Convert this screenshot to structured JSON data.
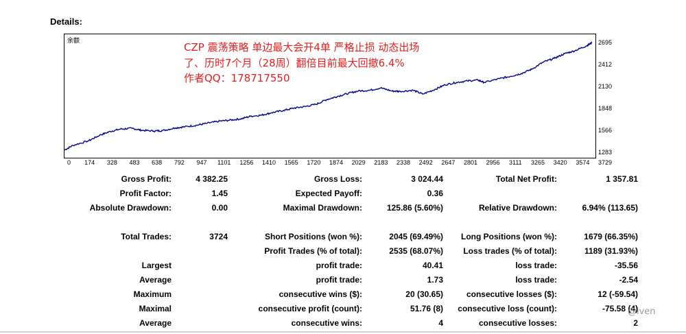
{
  "title": "Details:",
  "chart": {
    "balance_label": "余额",
    "watermark_lines": [
      "CZP 震荡策略 单边最大会开4单 严格止损  动态出场",
      "了、历时7个月（28周）翻倍目前最大回撤6.4%",
      "作者QQ：178717550"
    ],
    "line_color": "#00008b",
    "y_ticks": [
      "2695",
      "2412",
      "2130",
      "1848",
      "1566",
      "1283"
    ],
    "x_ticks": [
      "0",
      "174",
      "328",
      "483",
      "638",
      "792",
      "947",
      "1101",
      "1256",
      "1410",
      "1565",
      "1720",
      "1874",
      "2029",
      "2183",
      "2338",
      "2492",
      "2647",
      "2801",
      "2956",
      "3111",
      "3265",
      "3420",
      "3574",
      "3729"
    ]
  },
  "chart_data": {
    "type": "line",
    "ylim": [
      1283,
      2695
    ],
    "xlim": [
      0,
      3790
    ],
    "series": [
      {
        "x": [
          0,
          60,
          174,
          250,
          328,
          400,
          483,
          550,
          638,
          700,
          792,
          860,
          947,
          1020,
          1101,
          1180,
          1256,
          1330,
          1410,
          1480,
          1565,
          1640,
          1720,
          1800,
          1874,
          1950,
          2029,
          2100,
          2183,
          2260,
          2338,
          2400,
          2492,
          2560,
          2647,
          2720,
          2801,
          2880,
          2956,
          3000,
          3111,
          3190,
          3265,
          3340,
          3420,
          3500,
          3574,
          3650,
          3729,
          3770
        ],
        "values": [
          1320,
          1380,
          1440,
          1510,
          1560,
          1590,
          1600,
          1575,
          1565,
          1570,
          1605,
          1620,
          1640,
          1665,
          1690,
          1705,
          1720,
          1755,
          1770,
          1800,
          1830,
          1860,
          1880,
          1910,
          1970,
          2010,
          2050,
          2080,
          2090,
          2120,
          2080,
          2075,
          2090,
          2040,
          2100,
          2160,
          2190,
          2210,
          2220,
          2190,
          2240,
          2270,
          2305,
          2360,
          2450,
          2500,
          2560,
          2600,
          2660,
          2700
        ]
      }
    ]
  },
  "stats": [
    {
      "l1": "Gross Profit:",
      "v1": "4 382.25",
      "l2": "Gross Loss:",
      "v2": "3 024.44",
      "l3": "Total Net Profit:",
      "v3": "1 357.81"
    },
    {
      "l1": "Profit Factor:",
      "v1": "1.45",
      "l2": "Expected Payoff:",
      "v2": "0.36",
      "l3": "",
      "v3": ""
    },
    {
      "l1": "Absolute Drawdown:",
      "v1": "0.00",
      "l2": "Maximal Drawdown:",
      "v2": "125.86 (5.60%)",
      "l3": "Relative Drawdown:",
      "v3": "6.94% (113.65)"
    },
    {
      "l1": "Total Trades:",
      "v1": "3724",
      "l2": "Short Positions (won %):",
      "v2": "2045 (69.49%)",
      "l3": "Long Positions (won %):",
      "v3": "1679 (66.35%)"
    },
    {
      "l1": "",
      "v1": "",
      "l2": "Profit Trades (% of total):",
      "v2": "2535 (68.07%)",
      "l3": "Loss trades (% of total):",
      "v3": "1189 (31.93%)"
    },
    {
      "l1": "Largest",
      "v1": "",
      "l2": "profit trade:",
      "v2": "40.41",
      "l3": "loss trade:",
      "v3": "-35.56"
    },
    {
      "l1": "Average",
      "v1": "",
      "l2": "profit trade:",
      "v2": "1.73",
      "l3": "loss trade:",
      "v3": "-2.54"
    },
    {
      "l1": "Maximum",
      "v1": "",
      "l2": "consecutive wins ($):",
      "v2": "20 (30.65)",
      "l3": "consecutive losses ($):",
      "v3": "12 (-59.54)"
    },
    {
      "l1": "Maximal",
      "v1": "",
      "l2": "consecutive profit (count):",
      "v2": "51.76 (8)",
      "l3": "consecutive loss (count):",
      "v3": "-75.58 (4)"
    },
    {
      "l1": "Average",
      "v1": "",
      "l2": "consecutive wins:",
      "v2": "4",
      "l3": "consecutive losses:",
      "v3": "2"
    }
  ],
  "corner_watermark": "@iven"
}
